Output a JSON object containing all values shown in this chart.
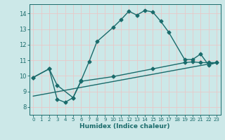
{
  "xlabel": "Humidex (Indice chaleur)",
  "bg_color": "#cce8e8",
  "grid_color": "#e8c8c8",
  "line_color": "#1a6b6b",
  "xlim": [
    -0.5,
    23.5
  ],
  "ylim": [
    7.5,
    14.6
  ],
  "xticks": [
    0,
    1,
    2,
    3,
    4,
    5,
    6,
    7,
    8,
    9,
    10,
    11,
    12,
    13,
    14,
    15,
    16,
    17,
    18,
    19,
    20,
    21,
    22,
    23
  ],
  "yticks": [
    8,
    9,
    10,
    11,
    12,
    13,
    14
  ],
  "curve1_x": [
    0,
    2,
    3,
    4,
    5,
    6,
    7,
    8,
    10,
    11,
    12,
    13,
    14,
    15,
    16,
    17,
    19,
    20,
    21,
    22,
    23
  ],
  "curve1_y": [
    9.9,
    10.45,
    8.5,
    8.3,
    8.6,
    9.7,
    10.9,
    12.2,
    13.1,
    13.6,
    14.15,
    13.9,
    14.2,
    14.1,
    13.5,
    12.8,
    11.05,
    11.05,
    11.4,
    10.7,
    10.85
  ],
  "curve2_x": [
    0,
    2,
    3,
    5,
    6,
    10,
    15,
    19,
    20,
    21,
    22,
    23
  ],
  "curve2_y": [
    9.9,
    10.45,
    9.4,
    8.6,
    9.65,
    9.95,
    10.45,
    10.85,
    10.9,
    10.85,
    10.85,
    10.85
  ],
  "curve3_x": [
    0,
    23
  ],
  "curve3_y": [
    8.7,
    10.85
  ],
  "marker": "D",
  "marker_size": 2.5,
  "linewidth": 1.0
}
